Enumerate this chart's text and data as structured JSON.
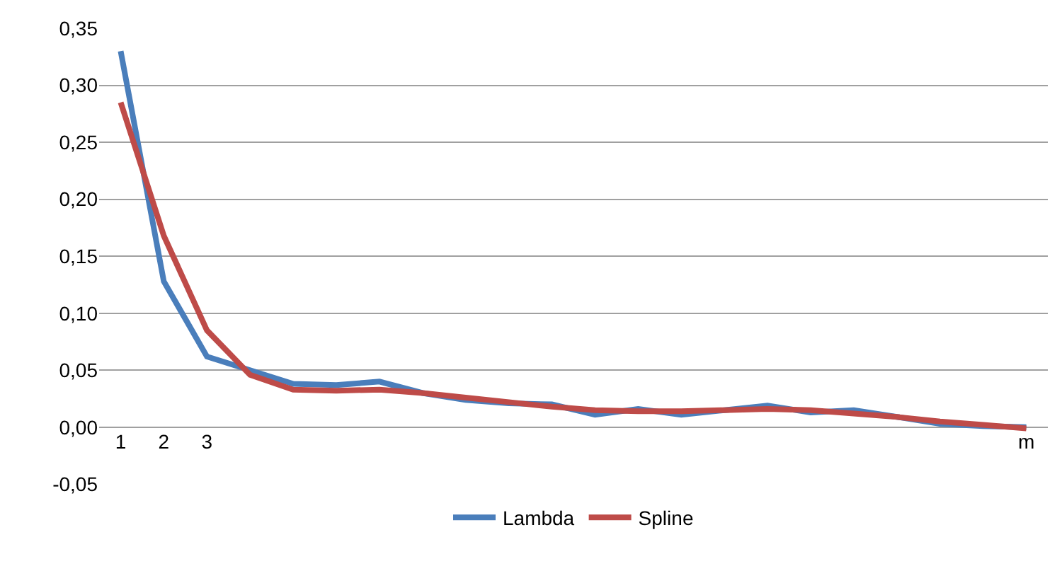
{
  "chart_data": {
    "type": "line",
    "categories": [
      "1",
      "2",
      "3",
      null,
      null,
      null,
      null,
      null,
      null,
      null,
      null,
      null,
      null,
      null,
      null,
      null,
      null,
      null,
      null,
      null,
      null,
      "m"
    ],
    "series": [
      {
        "name": "Lambda",
        "color": "#4a7ebb",
        "values": [
          0.33,
          0.128,
          0.062,
          0.05,
          0.038,
          0.037,
          0.04,
          0.03,
          0.024,
          0.021,
          0.02,
          0.011,
          0.016,
          0.011,
          0.015,
          0.019,
          0.013,
          0.015,
          0.009,
          0.003,
          0.001,
          0.0
        ]
      },
      {
        "name": "Spline",
        "color": "#be4b48",
        "values": [
          0.285,
          0.168,
          0.085,
          0.046,
          0.033,
          0.032,
          0.033,
          0.03,
          0.026,
          0.022,
          0.018,
          0.015,
          0.014,
          0.014,
          0.015,
          0.016,
          0.015,
          0.012,
          0.009,
          0.005,
          0.002,
          -0.001
        ]
      }
    ],
    "ylim": [
      -0.05,
      0.35
    ],
    "yticks": [
      {
        "value": -0.05,
        "label": "-0,05"
      },
      {
        "value": 0,
        "label": "0,00"
      },
      {
        "value": 0.05,
        "label": "0,05"
      },
      {
        "value": 0.1,
        "label": "0,10"
      },
      {
        "value": 0.15,
        "label": "0,15"
      },
      {
        "value": 0.2,
        "label": "0,20"
      },
      {
        "value": 0.25,
        "label": "0,25"
      },
      {
        "value": 0.3,
        "label": "0,30"
      },
      {
        "value": 0.35,
        "label": "0,35"
      }
    ],
    "grid": "y",
    "legend": "bottom",
    "marker": "none",
    "line_style": "solid"
  }
}
